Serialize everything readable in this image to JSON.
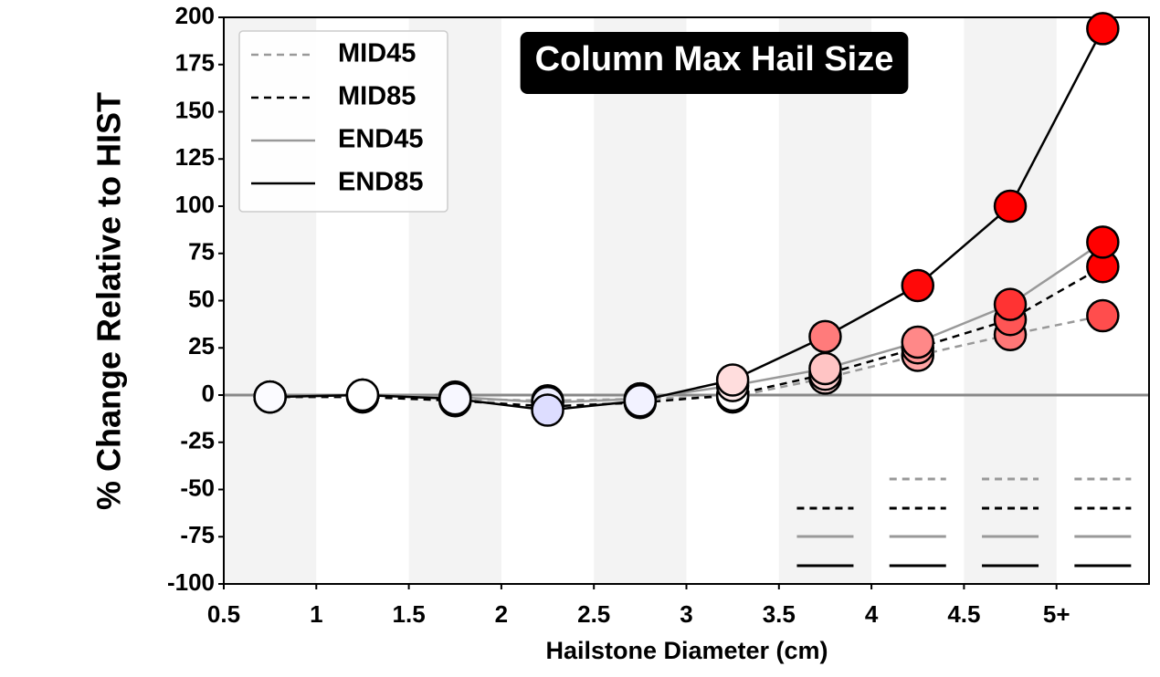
{
  "chart_data": {
    "type": "line",
    "title": "Column Max Hail Size",
    "xlabel": "Hailstone Diameter (cm)",
    "ylabel": "% Change Relative to HIST",
    "x": [
      0.75,
      1.25,
      1.75,
      2.25,
      2.75,
      3.25,
      3.75,
      4.25,
      4.75,
      5.25
    ],
    "series": [
      {
        "name": "MID45",
        "color": "#999999",
        "linestyle": "dashed",
        "values": [
          -1,
          0,
          -2,
          -3,
          -2,
          -1,
          9,
          21,
          32,
          42
        ],
        "significant": [
          false,
          false,
          false,
          false,
          false,
          false,
          false,
          true,
          true,
          true
        ]
      },
      {
        "name": "MID85",
        "color": "#000000",
        "linestyle": "dashed",
        "values": [
          -1,
          -1,
          -3,
          -6,
          -4,
          0,
          11,
          25,
          40,
          68
        ],
        "significant": [
          false,
          false,
          false,
          false,
          false,
          false,
          true,
          true,
          true,
          true
        ]
      },
      {
        "name": "END45",
        "color": "#999999",
        "linestyle": "solid",
        "values": [
          -1,
          0,
          -1,
          -4,
          -2,
          5,
          14,
          28,
          48,
          81
        ],
        "significant": [
          false,
          false,
          false,
          false,
          false,
          false,
          true,
          true,
          true,
          true
        ]
      },
      {
        "name": "END85",
        "color": "#000000",
        "linestyle": "solid",
        "values": [
          -1,
          0,
          -2,
          -8,
          -3,
          8,
          31,
          58,
          100,
          194
        ],
        "significant": [
          false,
          false,
          false,
          false,
          false,
          false,
          true,
          true,
          true,
          true
        ]
      }
    ],
    "marker_colormap": {
      "low": "#0000ff",
      "mid": "#ffffff",
      "high": "#ff0000",
      "vmin": -60,
      "vmax": 60
    },
    "xlim": [
      0.5,
      5.5
    ],
    "xticks": [
      0.5,
      1,
      1.5,
      2,
      2.5,
      3,
      3.5,
      4,
      4.5,
      {
        "value": 5,
        "label": "5+"
      }
    ],
    "ylim": [
      -100,
      200
    ],
    "yticks": [
      -100,
      -75,
      -50,
      -25,
      0,
      25,
      50,
      75,
      100,
      125,
      150,
      175,
      200
    ],
    "legend": "upper left"
  }
}
